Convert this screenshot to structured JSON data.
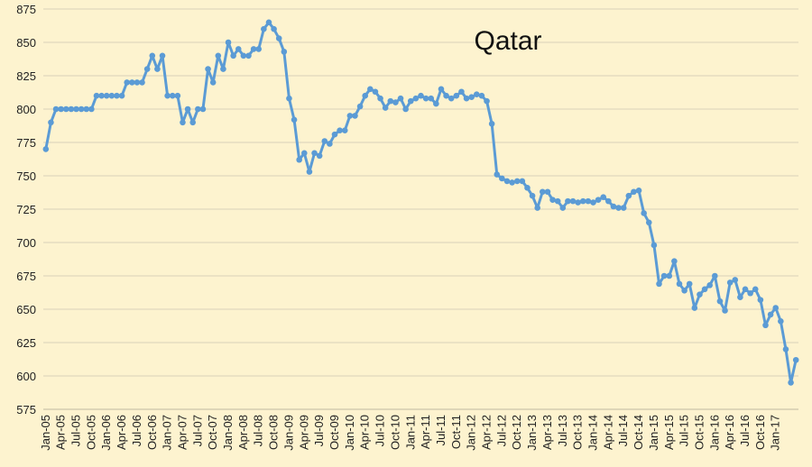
{
  "chart_data": {
    "type": "line",
    "title": "Qatar",
    "xlabel": "",
    "ylabel": "",
    "ylim": [
      575,
      875
    ],
    "yticks": [
      575,
      600,
      625,
      650,
      675,
      700,
      725,
      750,
      775,
      800,
      825,
      850,
      875
    ],
    "x_start": "Jan-05",
    "x_tick_labels": [
      "Jan-05",
      "Apr-05",
      "Jul-05",
      "Oct-05",
      "Jan-06",
      "Apr-06",
      "Jul-06",
      "Oct-06",
      "Jan-07",
      "Apr-07",
      "Jul-07",
      "Oct-07",
      "Jan-08",
      "Apr-08",
      "Jul-08",
      "Oct-08",
      "Jan-09",
      "Apr-09",
      "Jul-09",
      "Oct-09",
      "Jan-10",
      "Apr-10",
      "Jul-10",
      "Oct-10",
      "Jan-11",
      "Apr-11",
      "Jul-11",
      "Oct-11",
      "Jan-12",
      "Apr-12",
      "Jul-12",
      "Oct-12",
      "Jan-13",
      "Apr-13",
      "Jul-13",
      "Oct-13",
      "Jan-14",
      "Apr-14",
      "Jul-14",
      "Oct-14",
      "Jan-15",
      "Apr-15",
      "Jul-15",
      "Oct-15",
      "Jan-16",
      "Apr-16",
      "Jul-16",
      "Oct-16",
      "Jan-17"
    ],
    "grid": true,
    "line_color": "#5b9bd5",
    "background_color": "#fdf3cf",
    "series": [
      {
        "values": [
          770,
          790,
          800,
          800,
          800,
          800,
          800,
          800,
          800,
          800,
          810,
          810,
          810,
          810,
          810,
          810,
          820,
          820,
          820,
          820,
          830,
          840,
          830,
          840,
          810,
          810,
          810,
          790,
          800,
          790,
          800,
          800,
          830,
          820,
          840,
          830,
          850,
          840,
          845,
          840,
          840,
          845,
          845,
          860,
          865,
          860,
          853,
          843,
          808,
          792,
          762,
          767,
          753,
          767,
          765,
          776,
          774,
          781,
          784,
          784,
          795,
          795,
          802,
          810,
          815,
          813,
          808,
          801,
          806,
          805,
          808,
          800,
          806,
          808,
          810,
          808,
          808,
          804,
          815,
          810,
          808,
          810,
          813,
          808,
          809,
          811,
          810,
          806,
          789,
          751,
          748,
          746,
          745,
          746,
          746,
          741,
          735,
          726,
          738,
          738,
          732,
          731,
          726,
          731,
          731,
          730,
          731,
          731,
          730,
          732,
          734,
          731,
          727,
          726,
          726,
          735,
          738,
          739,
          722,
          715,
          698,
          669,
          675,
          675,
          686,
          669,
          664,
          669,
          651,
          661,
          665,
          668,
          675,
          656,
          649,
          670,
          672,
          659,
          665,
          662,
          665,
          657,
          638,
          646,
          651,
          641,
          620,
          595,
          612
        ]
      }
    ]
  }
}
